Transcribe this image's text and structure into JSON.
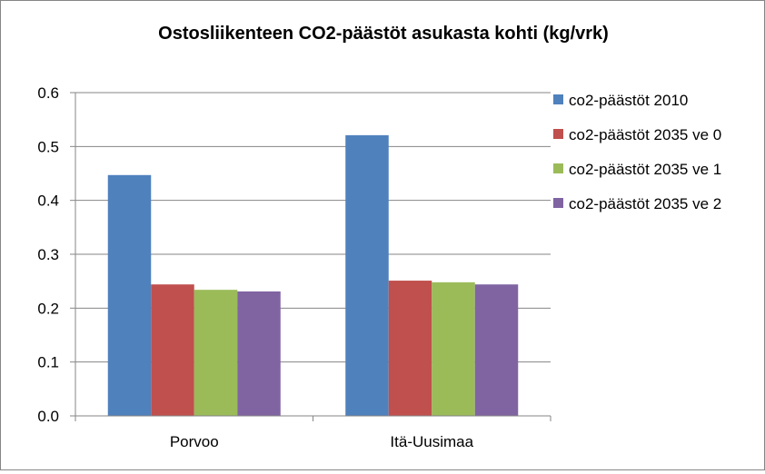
{
  "chart_data": {
    "type": "bar",
    "title": "Ostosliikenteen CO2-päästöt asukasta kohti (kg/vrk)",
    "xlabel": "",
    "ylabel": "",
    "categories": [
      "Porvoo",
      "Itä-Uusimaa"
    ],
    "series": [
      {
        "name": "co2-päästöt 2010",
        "color": "#4F81BD",
        "values": [
          0.447,
          0.521
        ]
      },
      {
        "name": "co2-päästöt 2035 ve 0",
        "color": "#C0504D",
        "values": [
          0.244,
          0.251
        ]
      },
      {
        "name": "co2-päästöt 2035 ve 1",
        "color": "#9BBB59",
        "values": [
          0.234,
          0.248
        ]
      },
      {
        "name": "co2-päästöt 2035 ve 2",
        "color": "#8064A2",
        "values": [
          0.231,
          0.244
        ]
      }
    ],
    "ylim": [
      0,
      0.6
    ],
    "yticks": [
      "0.0",
      "0.1",
      "0.2",
      "0.3",
      "0.4",
      "0.5",
      "0.6"
    ],
    "grid": true,
    "legend": "right"
  }
}
